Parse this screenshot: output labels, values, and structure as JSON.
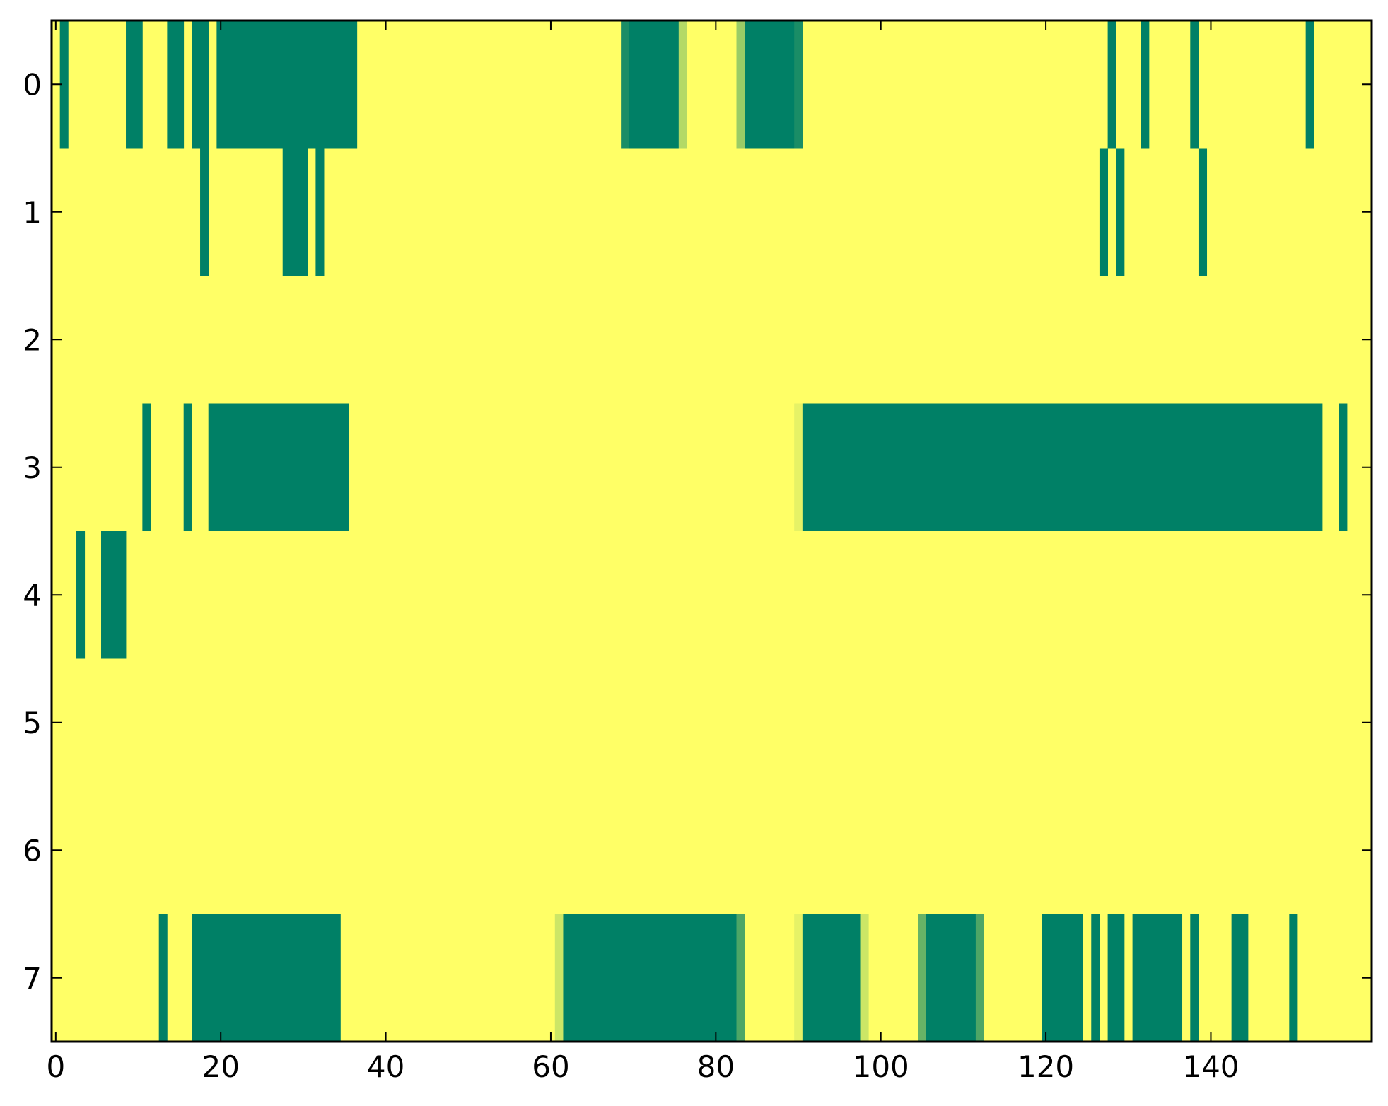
{
  "chart_data": {
    "type": "heatmap",
    "title": "",
    "xlabel": "",
    "ylabel": "",
    "xlim": [
      -0.5,
      159.5
    ],
    "ylim": [
      7.5,
      -0.5
    ],
    "x_ticks": [
      0,
      20,
      40,
      60,
      80,
      100,
      120,
      140
    ],
    "x_tick_labels": [
      "0",
      "20",
      "40",
      "60",
      "80",
      "100",
      "120",
      "140"
    ],
    "y_ticks": [
      0,
      1,
      2,
      3,
      4,
      5,
      6,
      7
    ],
    "y_tick_labels": [
      "0",
      "1",
      "2",
      "3",
      "4",
      "5",
      "6",
      "7"
    ],
    "n_cols": 160,
    "n_rows": 8,
    "colormap": "summer",
    "value_range": [
      0,
      1
    ],
    "background_value": 1,
    "colors": {
      "low": "#008066",
      "high": "#ffff66"
    },
    "grid": false,
    "legend": "none",
    "rows": [
      {
        "row": 0,
        "segments": [
          {
            "start": 1,
            "end": 1,
            "value": 0
          },
          {
            "start": 9,
            "end": 10,
            "value": 0
          },
          {
            "start": 14,
            "end": 15,
            "value": 0
          },
          {
            "start": 17,
            "end": 18,
            "value": 0
          },
          {
            "start": 20,
            "end": 36,
            "value": 0
          },
          {
            "start": 69,
            "end": 69,
            "value": 0.1
          },
          {
            "start": 70,
            "end": 75,
            "value": 0
          },
          {
            "start": 76,
            "end": 76,
            "value": 0.7
          },
          {
            "start": 83,
            "end": 83,
            "value": 0.6
          },
          {
            "start": 84,
            "end": 89,
            "value": 0
          },
          {
            "start": 90,
            "end": 90,
            "value": 0.1
          },
          {
            "start": 128,
            "end": 128,
            "value": 0
          },
          {
            "start": 132,
            "end": 132,
            "value": 0
          },
          {
            "start": 138,
            "end": 138,
            "value": 0
          },
          {
            "start": 152,
            "end": 152,
            "value": 0
          }
        ]
      },
      {
        "row": 1,
        "segments": [
          {
            "start": 18,
            "end": 18,
            "value": 0
          },
          {
            "start": 28,
            "end": 30,
            "value": 0
          },
          {
            "start": 32,
            "end": 32,
            "value": 0
          },
          {
            "start": 127,
            "end": 127,
            "value": 0
          },
          {
            "start": 129,
            "end": 129,
            "value": 0
          },
          {
            "start": 139,
            "end": 139,
            "value": 0
          }
        ]
      },
      {
        "row": 2,
        "segments": []
      },
      {
        "row": 3,
        "segments": [
          {
            "start": 11,
            "end": 11,
            "value": 0
          },
          {
            "start": 16,
            "end": 16,
            "value": 0
          },
          {
            "start": 19,
            "end": 35,
            "value": 0
          },
          {
            "start": 90,
            "end": 90,
            "value": 0.9
          },
          {
            "start": 91,
            "end": 153,
            "value": 0
          },
          {
            "start": 156,
            "end": 156,
            "value": 0
          }
        ]
      },
      {
        "row": 4,
        "segments": [
          {
            "start": 3,
            "end": 3,
            "value": 0
          },
          {
            "start": 6,
            "end": 8,
            "value": 0
          }
        ]
      },
      {
        "row": 5,
        "segments": []
      },
      {
        "row": 6,
        "segments": []
      },
      {
        "row": 7,
        "segments": [
          {
            "start": 13,
            "end": 13,
            "value": 0
          },
          {
            "start": 17,
            "end": 34,
            "value": 0
          },
          {
            "start": 61,
            "end": 61,
            "value": 0.8
          },
          {
            "start": 62,
            "end": 82,
            "value": 0
          },
          {
            "start": 83,
            "end": 83,
            "value": 0.3
          },
          {
            "start": 90,
            "end": 90,
            "value": 0.9
          },
          {
            "start": 91,
            "end": 97,
            "value": 0
          },
          {
            "start": 98,
            "end": 98,
            "value": 0.8
          },
          {
            "start": 105,
            "end": 105,
            "value": 0.4
          },
          {
            "start": 106,
            "end": 111,
            "value": 0
          },
          {
            "start": 112,
            "end": 112,
            "value": 0.3
          },
          {
            "start": 120,
            "end": 124,
            "value": 0
          },
          {
            "start": 126,
            "end": 126,
            "value": 0
          },
          {
            "start": 128,
            "end": 129,
            "value": 0
          },
          {
            "start": 131,
            "end": 136,
            "value": 0
          },
          {
            "start": 138,
            "end": 138,
            "value": 0
          },
          {
            "start": 143,
            "end": 144,
            "value": 0
          },
          {
            "start": 150,
            "end": 150,
            "value": 0
          }
        ]
      }
    ]
  }
}
